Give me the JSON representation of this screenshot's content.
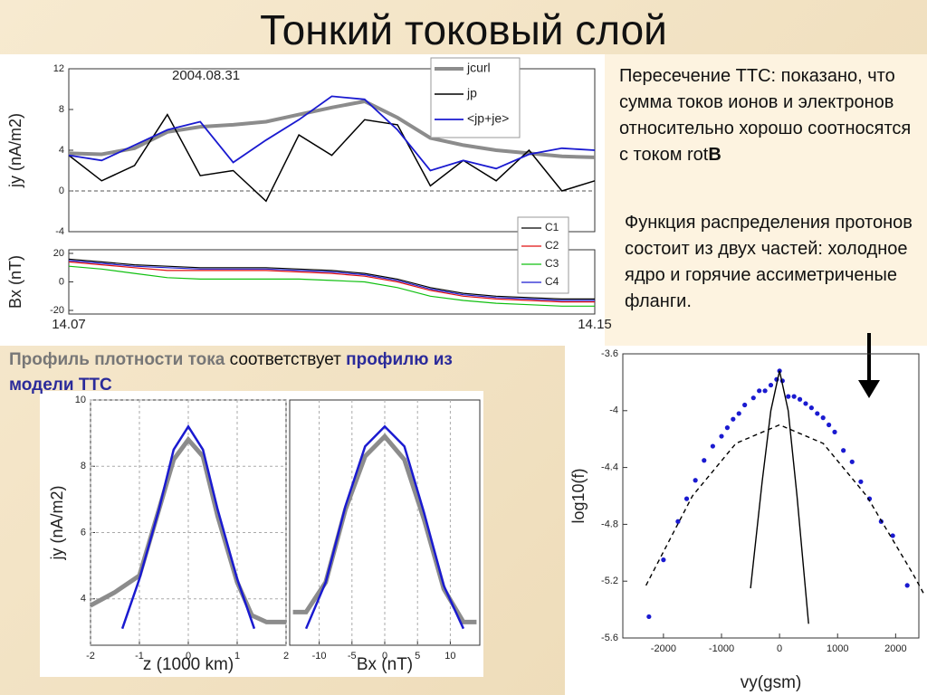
{
  "title": "Тонкий токовый слой",
  "paragraph1": {
    "text": "Пересечение ТТС: показано, что сумма токов ионов и электронов относительно хорошо соотносятся с током rot",
    "bold": "B"
  },
  "paragraph2": "Функция распределения протонов состоит из двух частей: холодное ядро и горячие ассиметриченые фланги.",
  "caption": {
    "part1": "Профиль плотности тока",
    "part2": " соответствует ",
    "part3": "профилю из модели ТТС"
  },
  "chart_data": [
    {
      "type": "line",
      "annotation": "2004.08.31",
      "y_label": "jy (nA/m2)",
      "xlim": [
        14.07,
        14.15
      ],
      "ylim": [
        -4,
        12
      ],
      "yticks": [
        -4,
        0,
        4,
        8,
        12
      ],
      "zero_line": true,
      "legend": "top-right",
      "x": [
        14.07,
        14.075,
        14.08,
        14.085,
        14.09,
        14.095,
        14.1,
        14.105,
        14.11,
        14.115,
        14.12,
        14.125,
        14.13,
        14.135,
        14.14,
        14.145,
        14.15
      ],
      "series": [
        {
          "name": "jcurl",
          "color": "#8c8c8c",
          "width": 4,
          "values": [
            3.7,
            3.6,
            4.2,
            5.8,
            6.3,
            6.5,
            6.8,
            7.5,
            8.2,
            8.8,
            7.2,
            5.2,
            4.5,
            4.0,
            3.7,
            3.4,
            3.3
          ]
        },
        {
          "name": "jp",
          "color": "#000000",
          "width": 1.5,
          "values": [
            3.5,
            1.0,
            2.5,
            7.5,
            1.5,
            2.0,
            -1.0,
            5.5,
            3.5,
            7.0,
            6.5,
            0.5,
            3.0,
            1.0,
            4.0,
            0.0,
            1.0
          ]
        },
        {
          "name": "<jp+je>",
          "color": "#1a1ad0",
          "width": 1.8,
          "values": [
            3.5,
            3.0,
            4.5,
            6.0,
            6.8,
            2.8,
            5.0,
            7.0,
            9.3,
            9.0,
            6.0,
            2.0,
            3.0,
            2.2,
            3.6,
            4.2,
            4.0
          ]
        }
      ]
    },
    {
      "type": "line",
      "y_label": "Bx (nT)",
      "xlim": [
        14.07,
        14.15
      ],
      "ylim": [
        -20,
        20
      ],
      "yticks": [
        -20,
        0,
        20
      ],
      "xticks": [
        14.07,
        14.15
      ],
      "legend": "top-right",
      "x": [
        14.07,
        14.075,
        14.08,
        14.085,
        14.09,
        14.095,
        14.1,
        14.105,
        14.11,
        14.115,
        14.12,
        14.125,
        14.13,
        14.135,
        14.14,
        14.145,
        14.15
      ],
      "series": [
        {
          "name": "C1",
          "color": "#000000",
          "width": 1.2,
          "values": [
            16,
            14,
            12,
            11,
            10,
            10,
            10,
            9,
            8,
            6,
            2,
            -4,
            -8,
            -10,
            -11,
            -12,
            -12
          ]
        },
        {
          "name": "C2",
          "color": "#e01010",
          "width": 1.2,
          "values": [
            14,
            12,
            10,
            8,
            8,
            8,
            8,
            7,
            6,
            4,
            0,
            -6,
            -10,
            -12,
            -13,
            -14,
            -14
          ]
        },
        {
          "name": "C3",
          "color": "#10c010",
          "width": 1.2,
          "values": [
            11,
            9,
            6,
            3,
            2,
            2,
            2,
            2,
            1,
            0,
            -4,
            -10,
            -13,
            -15,
            -16,
            -17,
            -17
          ]
        },
        {
          "name": "C4",
          "color": "#1a1ad0",
          "width": 1.2,
          "values": [
            15,
            13,
            11,
            10,
            9,
            9,
            9,
            8,
            7,
            5,
            1,
            -5,
            -9,
            -11,
            -12,
            -13,
            -13
          ]
        }
      ]
    },
    {
      "type": "line",
      "y_label": "jy (nA/m2)",
      "x_label": "z (1000 km)",
      "xlim": [
        -2,
        2
      ],
      "ylim": [
        2.6,
        10
      ],
      "xticks": [
        -2,
        -1,
        0,
        1,
        2
      ],
      "yticks": [
        4,
        6,
        8,
        10
      ],
      "grid": true,
      "series": [
        {
          "color": "#8c8c8c",
          "width": 5,
          "x": [
            -2,
            -1.5,
            -1,
            -0.6,
            -0.3,
            0,
            0.3,
            0.6,
            1,
            1.3,
            1.6,
            2
          ],
          "values": [
            3.8,
            4.2,
            4.7,
            6.7,
            8.2,
            8.8,
            8.3,
            6.5,
            4.5,
            3.5,
            3.3,
            3.3
          ]
        },
        {
          "color": "#1a1ad0",
          "width": 2.5,
          "x": [
            -1.35,
            -1,
            -0.6,
            -0.3,
            0,
            0.3,
            0.6,
            1,
            1.35
          ],
          "values": [
            3.1,
            4.6,
            6.7,
            8.5,
            9.2,
            8.5,
            6.7,
            4.6,
            3.1
          ]
        }
      ]
    },
    {
      "type": "line",
      "x_label": "Bx (nT)",
      "xlim": [
        -14.5,
        14.5
      ],
      "ylim": [
        2.6,
        10
      ],
      "xticks": [
        -10,
        -5,
        0,
        5,
        10
      ],
      "grid": true,
      "series": [
        {
          "color": "#8c8c8c",
          "width": 5,
          "x": [
            -14,
            -12,
            -9,
            -6,
            -3,
            0,
            3,
            6,
            9,
            12,
            14
          ],
          "values": [
            3.6,
            3.6,
            4.5,
            6.7,
            8.3,
            8.9,
            8.2,
            6.4,
            4.3,
            3.3,
            3.3
          ]
        },
        {
          "color": "#1a1ad0",
          "width": 2.5,
          "x": [
            -12,
            -9,
            -6,
            -3,
            0,
            3,
            6,
            9,
            12
          ],
          "values": [
            3.1,
            4.5,
            6.8,
            8.6,
            9.2,
            8.6,
            6.6,
            4.4,
            3.1
          ]
        }
      ]
    },
    {
      "type": "scatter",
      "y_label": "log10(f)",
      "x_label": "vy(gsm)",
      "xlim": [
        -2700,
        2400
      ],
      "ylim": [
        -5.6,
        -3.6
      ],
      "xticks": [
        -2000,
        -1000,
        0,
        1000,
        2000
      ],
      "yticks": [
        -3.6,
        -4,
        -4.4,
        -4.8,
        -5.2,
        -5.6
      ],
      "series": [
        {
          "color": "#1a1ad0",
          "style": "dots",
          "x": [
            -2250,
            -2000,
            -1750,
            -1600,
            -1450,
            -1300,
            -1150,
            -1000,
            -900,
            -800,
            -700,
            -600,
            -450,
            -350,
            -250,
            -150,
            -50,
            0,
            50,
            150,
            250,
            350,
            450,
            550,
            650,
            750,
            850,
            950,
            1100,
            1250,
            1400,
            1550,
            1750,
            1950,
            2200
          ],
          "values": [
            -5.45,
            -5.05,
            -4.78,
            -4.62,
            -4.49,
            -4.35,
            -4.25,
            -4.18,
            -4.12,
            -4.06,
            -4.02,
            -3.96,
            -3.91,
            -3.86,
            -3.86,
            -3.82,
            -3.78,
            -3.72,
            -3.79,
            -3.9,
            -3.9,
            -3.92,
            -3.95,
            -3.98,
            -4.02,
            -4.05,
            -4.1,
            -4.15,
            -4.28,
            -4.36,
            -4.5,
            -4.62,
            -4.78,
            -4.88,
            -5.23
          ]
        },
        {
          "color": "#000000",
          "style": "dashed",
          "x": [
            -2300,
            -1500,
            -750,
            0,
            750,
            1500,
            2300,
            2500
          ],
          "values": [
            -5.23,
            -4.6,
            -4.23,
            -4.1,
            -4.23,
            -4.6,
            -5.15,
            -5.3
          ]
        },
        {
          "color": "#000000",
          "style": "solid",
          "x": [
            -500,
            -300,
            -150,
            0,
            150,
            300,
            500
          ],
          "values": [
            -5.25,
            -4.5,
            -4.0,
            -3.72,
            -4.0,
            -4.6,
            -5.5
          ]
        }
      ]
    }
  ]
}
